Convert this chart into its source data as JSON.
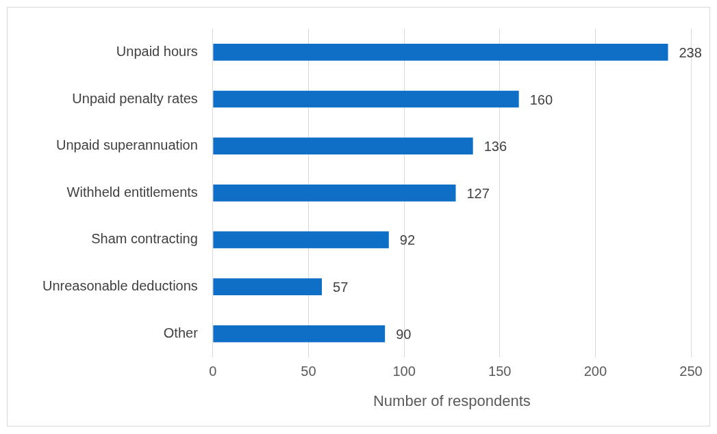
{
  "chart_data": {
    "type": "bar",
    "orientation": "horizontal",
    "xlabel": "Number of respondents",
    "categories": [
      "Unpaid hours",
      "Unpaid penalty rates",
      "Unpaid superannuation",
      "Withheld entitlements",
      "Sham contracting",
      "Unreasonable deductions",
      "Other"
    ],
    "values": [
      238,
      160,
      136,
      127,
      92,
      57,
      90
    ],
    "color": "#0f6fc6",
    "xlim": [
      0,
      250
    ],
    "xticks": [
      0,
      50,
      100,
      150,
      200,
      250
    ],
    "grid": "x",
    "data_labels": true
  }
}
